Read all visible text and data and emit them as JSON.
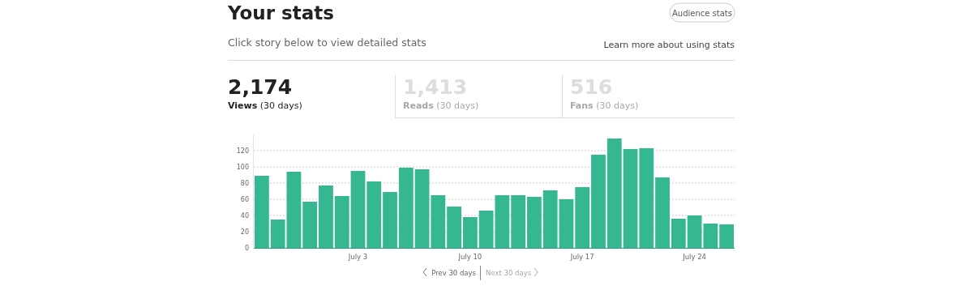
{
  "chart_data": {
    "type": "bar",
    "title": "Your stats",
    "subtitle": "Click story below to view detailed stats",
    "categories": [
      null,
      null,
      null,
      null,
      null,
      null,
      "July 3",
      null,
      null,
      null,
      null,
      null,
      null,
      "July 10",
      null,
      null,
      null,
      null,
      null,
      null,
      "July 17",
      null,
      null,
      null,
      null,
      null,
      null,
      "July 24",
      null,
      null
    ],
    "values": [
      89,
      35,
      94,
      57,
      77,
      64,
      95,
      82,
      69,
      99,
      97,
      65,
      51,
      38,
      46,
      65,
      65,
      63,
      71,
      60,
      75,
      115,
      135,
      122,
      123,
      87,
      36,
      40,
      30,
      29
    ],
    "color": "#35b891",
    "ylim": [
      0,
      140
    ],
    "yticks": [
      0,
      20,
      40,
      60,
      80,
      100,
      120
    ],
    "grid": "y",
    "annotations": [
      "Audience stats",
      "Learn more about using stats",
      "2,174",
      "Views (30 days)",
      "1,413",
      "Reads (30 days)",
      "516",
      "Fans (30 days)",
      "Prev 30 days",
      "Next 30 days"
    ]
  }
}
